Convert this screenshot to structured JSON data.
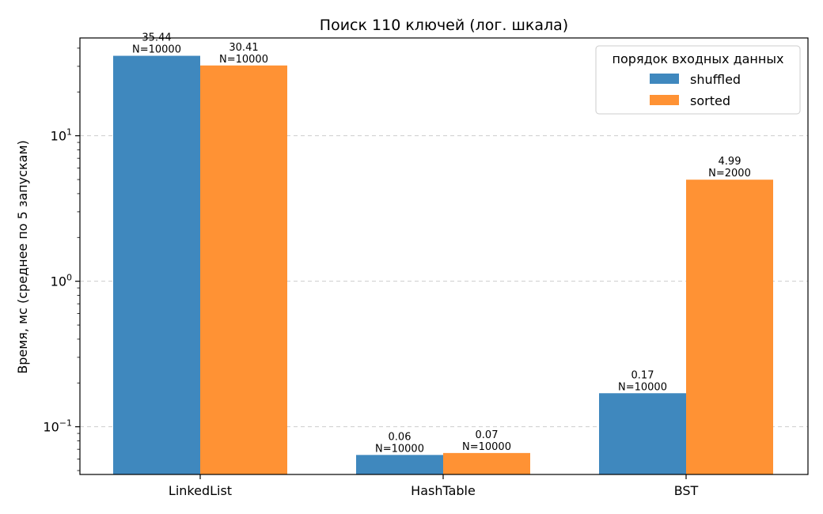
{
  "chart_data": {
    "type": "bar",
    "title": "Поиск 110 ключей (лог. шкала)",
    "xlabel": "",
    "ylabel": "Время, мс (среднее по 5 запускам)",
    "yscale": "log",
    "ylim": [
      0.047,
      47
    ],
    "yticks": [
      {
        "value": 0.1,
        "base": "10",
        "exp": "−1"
      },
      {
        "value": 1,
        "base": "10",
        "exp": "0"
      },
      {
        "value": 10,
        "base": "10",
        "exp": "1"
      }
    ],
    "grid": "y-major-dashed",
    "categories": [
      "LinkedList",
      "HashTable",
      "BST"
    ],
    "legend": {
      "title": "порядок входных данных",
      "placement": "top-right"
    },
    "series": [
      {
        "name": "shuffled",
        "color": "#3f88be",
        "values": [
          35.44,
          0.064,
          0.17
        ],
        "labels": [
          "35.44",
          "0.06",
          "0.17"
        ],
        "n_labels": [
          "N=10000",
          "N=10000",
          "N=10000"
        ]
      },
      {
        "name": "sorted",
        "color": "#ff9234",
        "values": [
          30.41,
          0.066,
          4.99
        ],
        "labels": [
          "30.41",
          "0.07",
          "4.99"
        ],
        "n_labels": [
          "N=10000",
          "N=10000",
          "N=2000"
        ]
      }
    ]
  }
}
